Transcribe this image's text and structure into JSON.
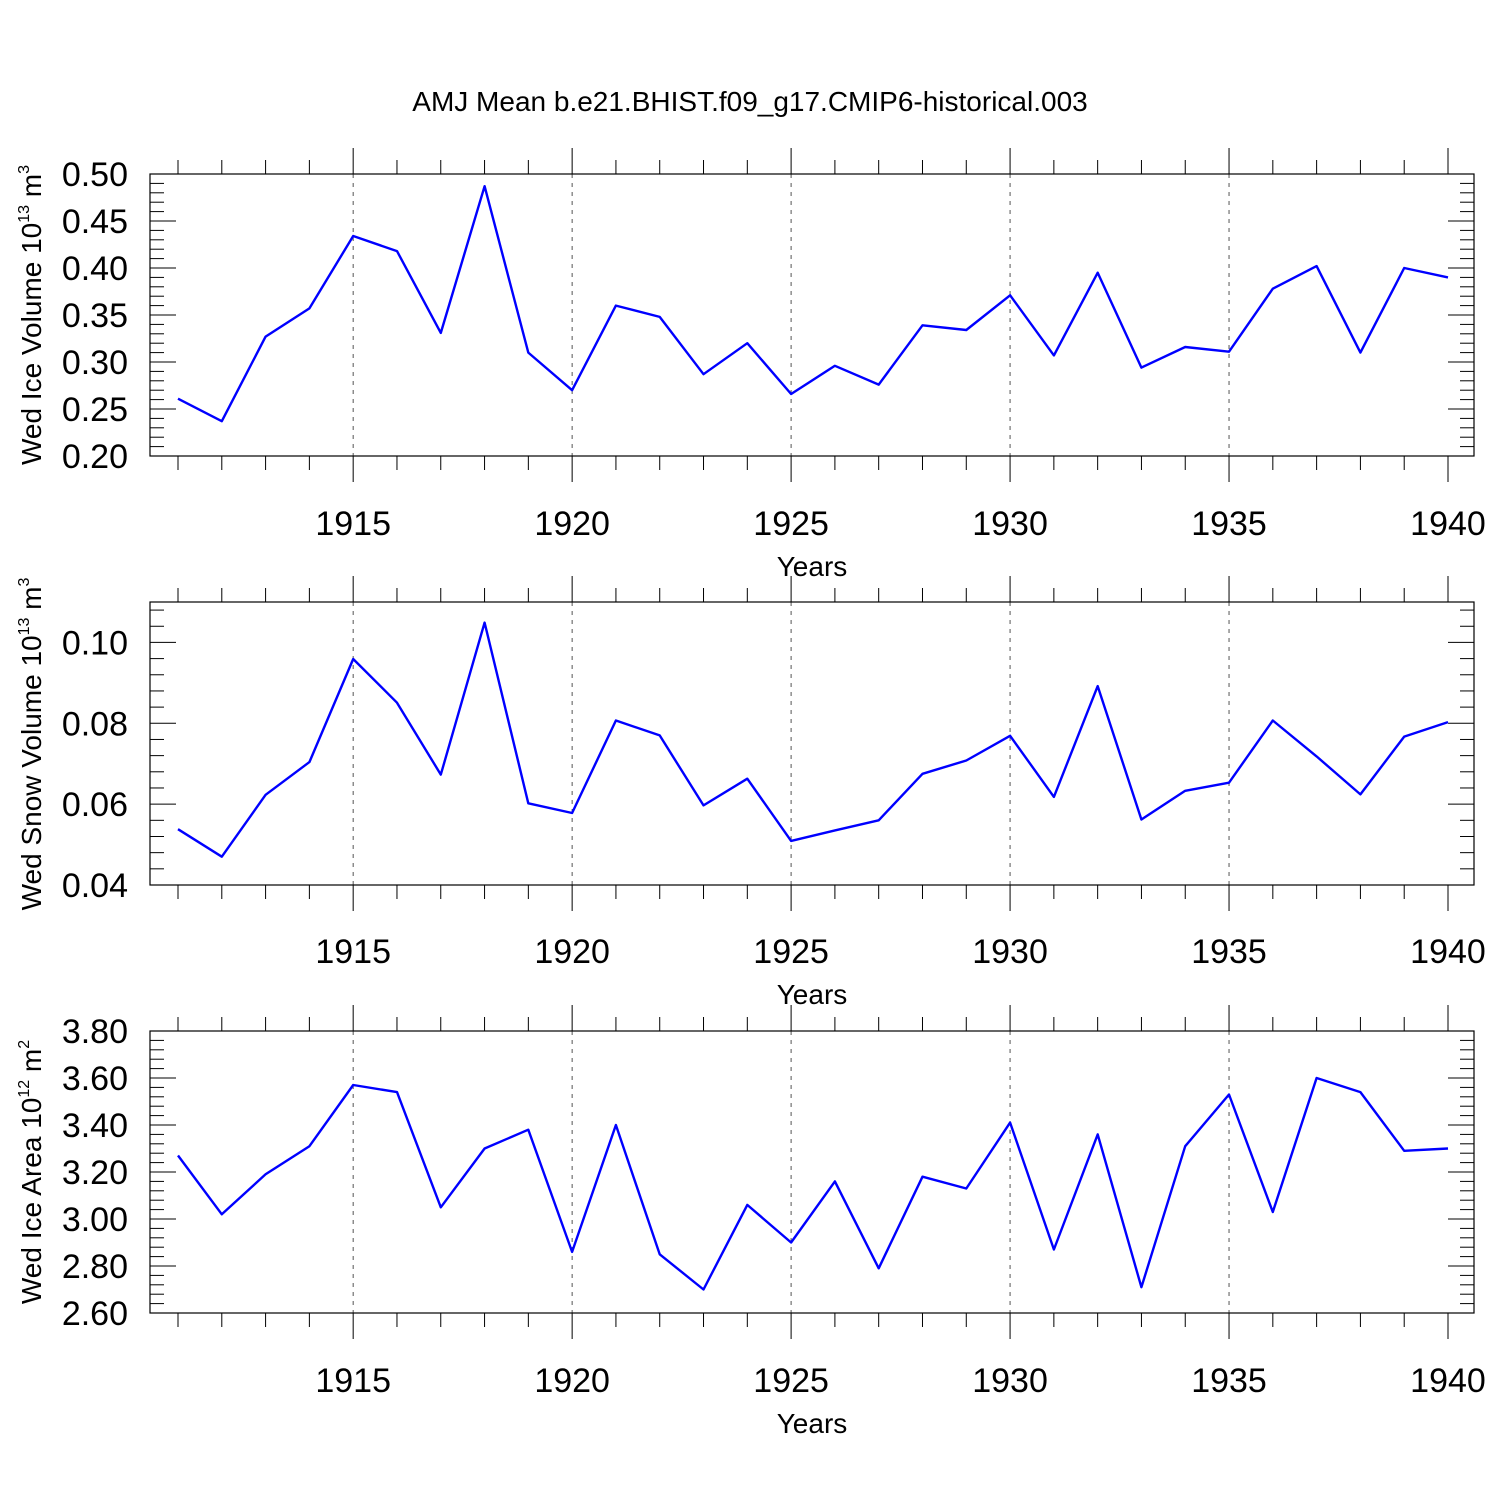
{
  "title": "AMJ Mean b.e21.BHIST.f09_g17.CMIP6-historical.003",
  "colors": {
    "series": "#0000ff",
    "axis": "#000000",
    "grid": "#555555"
  },
  "chart_data": [
    {
      "type": "line",
      "title": "AMJ Mean b.e21.BHIST.f09_g17.CMIP6-historical.003",
      "xlabel": "Years",
      "ylabel": {
        "main": "Wed Ice Volume 10",
        "sup": "13",
        "unit": " m",
        "unit_sup": "3"
      },
      "xlim": [
        1911,
        1940
      ],
      "ylim": [
        0.2,
        0.5
      ],
      "x_ticks": [
        "1915",
        "1920",
        "1925",
        "1930",
        "1935",
        "1940"
      ],
      "y_ticks": [
        "0.20",
        "0.25",
        "0.30",
        "0.35",
        "0.40",
        "0.45",
        "0.50"
      ],
      "grid": "vertical dashed at major x ticks",
      "x": [
        1911,
        1912,
        1913,
        1914,
        1915,
        1916,
        1917,
        1918,
        1919,
        1920,
        1921,
        1922,
        1923,
        1924,
        1925,
        1926,
        1927,
        1928,
        1929,
        1930,
        1931,
        1932,
        1933,
        1934,
        1935,
        1936,
        1937,
        1938,
        1939,
        1940
      ],
      "values": [
        0.261,
        0.237,
        0.327,
        0.357,
        0.434,
        0.418,
        0.331,
        0.487,
        0.31,
        0.27,
        0.36,
        0.348,
        0.287,
        0.32,
        0.266,
        0.296,
        0.276,
        0.339,
        0.334,
        0.371,
        0.307,
        0.395,
        0.294,
        0.316,
        0.311,
        0.378,
        0.402,
        0.31,
        0.4,
        0.39
      ]
    },
    {
      "type": "line",
      "xlabel": "Years",
      "ylabel": {
        "main": "Wed Snow Volume 10",
        "sup": "13",
        "unit": " m",
        "unit_sup": "3"
      },
      "xlim": [
        1911,
        1940
      ],
      "ylim": [
        0.04,
        0.11
      ],
      "x_ticks": [
        "1915",
        "1920",
        "1925",
        "1930",
        "1935",
        "1940"
      ],
      "y_ticks": [
        "0.04",
        "0.06",
        "0.08",
        "0.10"
      ],
      "grid": "vertical dashed at major x ticks",
      "x": [
        1911,
        1912,
        1913,
        1914,
        1915,
        1916,
        1917,
        1918,
        1919,
        1920,
        1921,
        1922,
        1923,
        1924,
        1925,
        1926,
        1927,
        1928,
        1929,
        1930,
        1931,
        1932,
        1933,
        1934,
        1935,
        1936,
        1937,
        1938,
        1939,
        1940
      ],
      "values": [
        0.0538,
        0.047,
        0.0623,
        0.0704,
        0.0959,
        0.0851,
        0.0673,
        0.1049,
        0.0602,
        0.0578,
        0.0807,
        0.077,
        0.0597,
        0.0663,
        0.0509,
        0.0535,
        0.056,
        0.0675,
        0.0708,
        0.0769,
        0.0618,
        0.0892,
        0.0562,
        0.0633,
        0.0653,
        0.0807,
        0.0718,
        0.0624,
        0.0767,
        0.0803
      ]
    },
    {
      "type": "line",
      "xlabel": "Years",
      "ylabel": {
        "main": "Wed Ice Area 10",
        "sup": "12",
        "unit": " m",
        "unit_sup": "2"
      },
      "xlim": [
        1911,
        1940
      ],
      "ylim": [
        2.6,
        3.8
      ],
      "x_ticks": [
        "1915",
        "1920",
        "1925",
        "1930",
        "1935",
        "1940"
      ],
      "y_ticks": [
        "2.60",
        "2.80",
        "3.00",
        "3.20",
        "3.40",
        "3.60",
        "3.80"
      ],
      "grid": "vertical dashed at major x ticks",
      "x": [
        1911,
        1912,
        1913,
        1914,
        1915,
        1916,
        1917,
        1918,
        1919,
        1920,
        1921,
        1922,
        1923,
        1924,
        1925,
        1926,
        1927,
        1928,
        1929,
        1930,
        1931,
        1932,
        1933,
        1934,
        1935,
        1936,
        1937,
        1938,
        1939,
        1940
      ],
      "values": [
        3.27,
        3.02,
        3.19,
        3.31,
        3.57,
        3.54,
        3.05,
        3.3,
        3.38,
        2.86,
        3.4,
        2.85,
        2.7,
        3.06,
        2.9,
        3.16,
        2.79,
        3.18,
        3.13,
        3.41,
        2.87,
        3.36,
        2.71,
        3.31,
        3.53,
        3.03,
        3.6,
        3.54,
        3.29,
        3.3
      ]
    }
  ]
}
